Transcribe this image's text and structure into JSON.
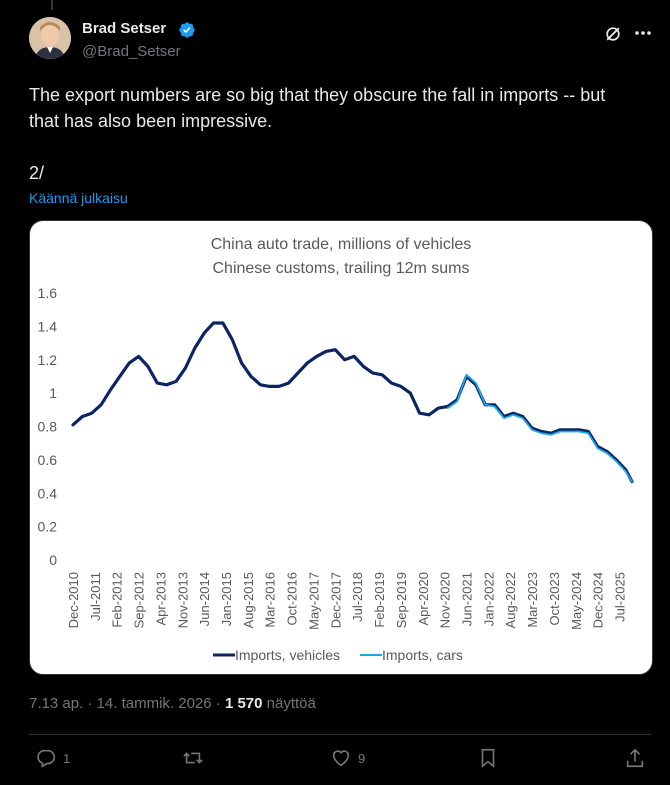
{
  "author": {
    "name": "Brad Setser",
    "handle": "@Brad_Setser"
  },
  "tweet": {
    "text": "The export numbers are so big that they obscure the fall in imports -- but\nthat has also been impressive.\n\n2/",
    "translate_label": "Käännä julkaisu"
  },
  "meta": {
    "time_date": "7.13 ap. · 14. tammik. 2026 · ",
    "views": "1 570",
    "views_label": " näyttöä"
  },
  "actions": {
    "replies": "1",
    "reposts": "",
    "likes": "9"
  },
  "colors": {
    "vehicles": "#0b2463",
    "cars": "#1ea7e8",
    "accent": "#1d9bf0"
  },
  "icons": [
    "verified-badge-icon",
    "grok-icon",
    "more-icon",
    "reply-icon",
    "repost-icon",
    "like-icon",
    "bookmark-icon",
    "share-icon"
  ],
  "chart_data": {
    "type": "line",
    "title": "China auto trade, millions of vehicles",
    "subtitle": "Chinese customs, trailing 12m sums",
    "ylim": [
      0,
      1.6
    ],
    "yticks": [
      "1.6",
      "1.4",
      "1.2",
      "1",
      "0.8",
      "0.6",
      "0.4",
      "0.2",
      "0"
    ],
    "yvalues": [
      1.6,
      1.4,
      1.2,
      1.0,
      0.8,
      0.6,
      0.4,
      0.2,
      0
    ],
    "xticks": [
      "Dec-2010",
      "Jul-2011",
      "Feb-2012",
      "Sep-2012",
      "Apr-2013",
      "Nov-2013",
      "Jun-2014",
      "Jan-2015",
      "Aug-2015",
      "Mar-2016",
      "Oct-2016",
      "May-2017",
      "Dec-2017",
      "Jul-2018",
      "Feb-2019",
      "Sep-2019",
      "Apr-2020",
      "Nov-2020",
      "Jun-2021",
      "Jan-2022",
      "Aug-2022",
      "Mar-2023",
      "Oct-2023",
      "May-2024",
      "Dec-2024",
      "Jul-2025"
    ],
    "legend": [
      "Imports, vehicles",
      "Imports, cars"
    ],
    "legend_position": "bottom",
    "series": [
      {
        "name": "Imports, vehicles",
        "x": [
          "Dec-2010",
          "Mar-2011",
          "Jun-2011",
          "Sep-2011",
          "Dec-2011",
          "Mar-2012",
          "Jun-2012",
          "Sep-2012",
          "Dec-2012",
          "Mar-2013",
          "Jun-2013",
          "Sep-2013",
          "Dec-2013",
          "Mar-2014",
          "Jun-2014",
          "Sep-2014",
          "Dec-2014",
          "Mar-2015",
          "Jun-2015",
          "Sep-2015",
          "Dec-2015",
          "Mar-2016",
          "Jun-2016",
          "Sep-2016",
          "Dec-2016",
          "Mar-2017",
          "Jun-2017",
          "Sep-2017",
          "Dec-2017",
          "Mar-2018",
          "Jun-2018",
          "Sep-2018",
          "Dec-2018",
          "Mar-2019",
          "Jun-2019",
          "Sep-2019",
          "Dec-2019",
          "Mar-2020",
          "Jun-2020",
          "Sep-2020",
          "Dec-2020",
          "Mar-2021",
          "Jun-2021",
          "Sep-2021",
          "Dec-2021",
          "Mar-2022",
          "Jun-2022",
          "Sep-2022",
          "Dec-2022",
          "Mar-2023",
          "Jun-2023",
          "Sep-2023",
          "Dec-2023",
          "Mar-2024",
          "Jun-2024",
          "Sep-2024",
          "Dec-2024",
          "Mar-2025",
          "Jun-2025",
          "Sep-2025",
          "Nov-2025"
        ],
        "values": [
          0.81,
          0.86,
          0.88,
          0.93,
          1.02,
          1.1,
          1.18,
          1.22,
          1.16,
          1.06,
          1.05,
          1.07,
          1.15,
          1.27,
          1.36,
          1.42,
          1.42,
          1.32,
          1.18,
          1.1,
          1.05,
          1.04,
          1.04,
          1.06,
          1.12,
          1.18,
          1.22,
          1.25,
          1.26,
          1.2,
          1.22,
          1.16,
          1.12,
          1.11,
          1.06,
          1.04,
          1.0,
          0.88,
          0.87,
          0.91,
          0.92,
          0.96,
          1.1,
          1.05,
          0.93,
          0.93,
          0.86,
          0.88,
          0.86,
          0.79,
          0.77,
          0.76,
          0.78,
          0.78,
          0.78,
          0.77,
          0.68,
          0.65,
          0.6,
          0.54,
          0.47
        ]
      },
      {
        "name": "Imports, cars",
        "x": [
          "Dec-2020",
          "Mar-2021",
          "Jun-2021",
          "Sep-2021",
          "Dec-2021",
          "Mar-2022",
          "Jun-2022",
          "Sep-2022",
          "Dec-2022",
          "Mar-2023",
          "Jun-2023",
          "Sep-2023",
          "Dec-2023",
          "Mar-2024",
          "Jun-2024",
          "Sep-2024",
          "Dec-2024",
          "Mar-2025",
          "Jun-2025",
          "Sep-2025",
          "Nov-2025"
        ],
        "values": [
          0.91,
          0.95,
          1.11,
          1.06,
          0.93,
          0.92,
          0.85,
          0.87,
          0.85,
          0.78,
          0.76,
          0.75,
          0.77,
          0.77,
          0.77,
          0.76,
          0.67,
          0.64,
          0.59,
          0.53,
          0.47
        ]
      }
    ]
  }
}
